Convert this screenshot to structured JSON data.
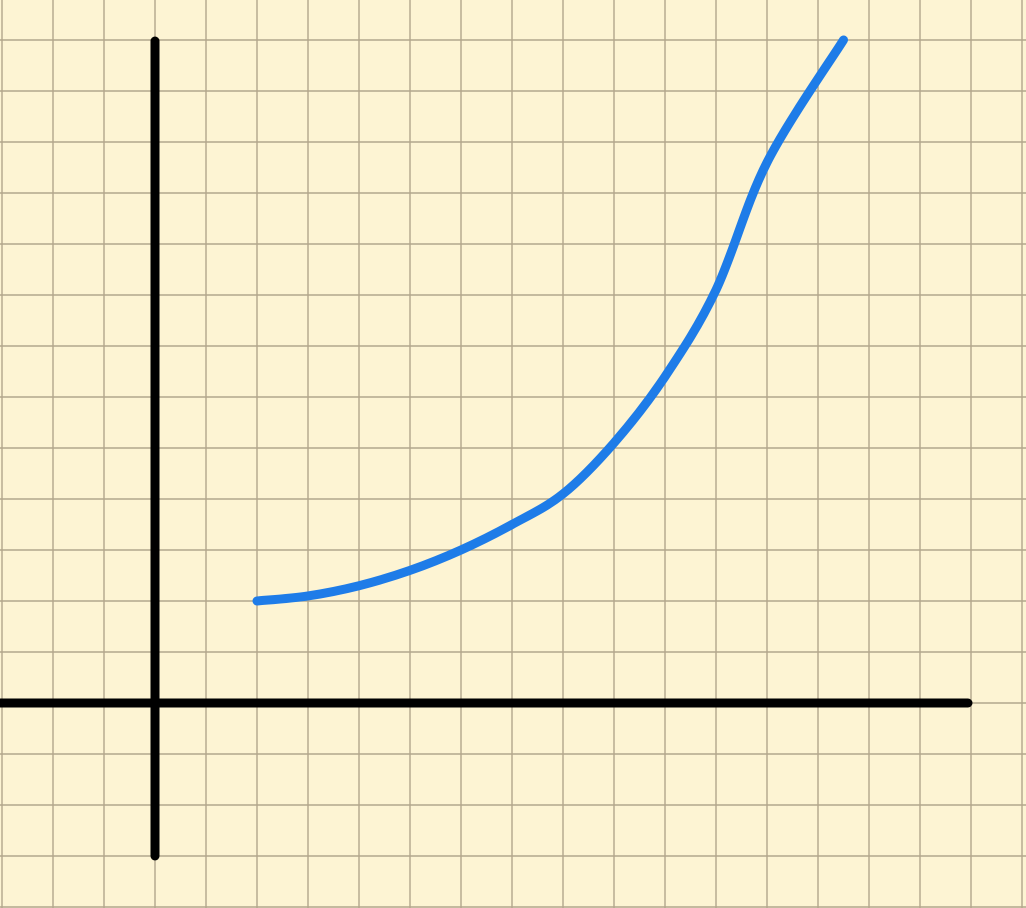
{
  "chart_data": {
    "type": "line",
    "title": "",
    "xlabel": "",
    "ylabel": "",
    "grid": true,
    "xlim": [
      -3,
      16
    ],
    "ylim": [
      -3,
      13
    ],
    "series": [
      {
        "color": "#1e7ce8",
        "x": [
          2,
          3,
          4,
          5,
          6,
          7,
          8,
          9,
          10,
          11,
          12,
          13.5
        ],
        "y": [
          2,
          2.1,
          2.3,
          2.6,
          3,
          3.5,
          4.1,
          5.1,
          6.4,
          8.1,
          10.6,
          13
        ]
      }
    ]
  },
  "colors": {
    "background": "#fdf4d3",
    "grid": "#b2a68c",
    "axes": "#000000",
    "curve": "#1e7ce8"
  }
}
